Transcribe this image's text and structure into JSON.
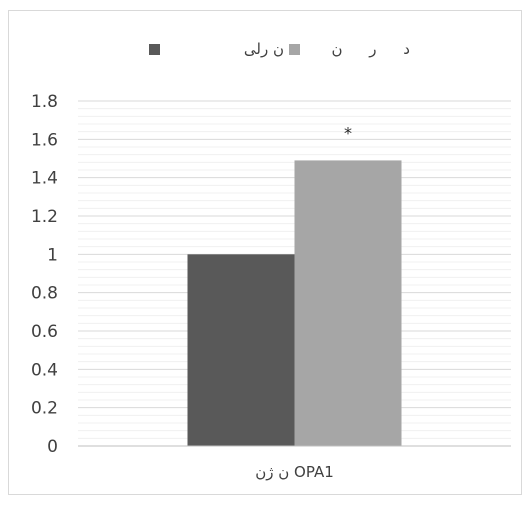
{
  "chart_data": {
    "type": "bar",
    "categories": [
      "ن ژن OPA1"
    ],
    "series": [
      {
        "name": "ن رلی",
        "values": [
          1.0
        ],
        "color": "#595959"
      },
      {
        "name": "د ر ن",
        "values": [
          1.49
        ],
        "color": "#a6a6a6"
      }
    ],
    "ylim": [
      0,
      1.8
    ],
    "ytick_step": 0.2,
    "minor_gridlines": true,
    "legend_position": "top",
    "annotations": [
      {
        "series": 1,
        "category": 0,
        "text": "*"
      }
    ]
  }
}
